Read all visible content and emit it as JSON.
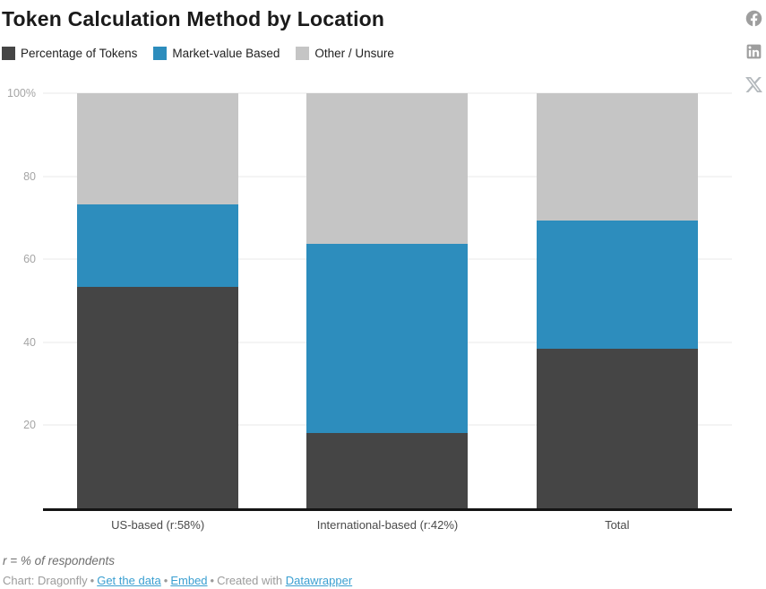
{
  "title": "Token Calculation Method by Location",
  "legend": [
    {
      "label": "Percentage of Tokens",
      "color": "#454545"
    },
    {
      "label": "Market-value Based",
      "color": "#2d8dbd"
    },
    {
      "label": "Other / Unsure",
      "color": "#c5c5c5"
    }
  ],
  "chart_data": {
    "type": "bar",
    "stacked": true,
    "unit": "%",
    "title": "Token Calculation Method by Location",
    "categories": [
      "US-based (r:58%)",
      "International-based (r:42%)",
      "Total"
    ],
    "series": [
      {
        "name": "Percentage of Tokens",
        "color": "#454545",
        "values": [
          53.3,
          18.2,
          38.5
        ]
      },
      {
        "name": "Market-value Based",
        "color": "#2d8dbd",
        "values": [
          20.0,
          45.5,
          30.8
        ]
      },
      {
        "name": "Other / Unsure",
        "color": "#c5c5c5",
        "values": [
          26.7,
          36.4,
          30.7
        ]
      }
    ],
    "xlabel": "",
    "ylabel": "",
    "ylim": [
      0,
      100
    ],
    "yticks": [
      20,
      40,
      60,
      80,
      100
    ],
    "ytick_labels": [
      "20",
      "40",
      "60",
      "80",
      "100%"
    ],
    "grid": true,
    "legend_position": "top"
  },
  "footer": {
    "note": "r = % of respondents",
    "attribution": {
      "credit": "Chart: Dragonfly",
      "separator": "•",
      "get_data_label": "Get the data",
      "embed_label": "Embed",
      "created_with": "Created with",
      "datawrapper_label": "Datawrapper",
      "link_color": "#3a9fd1"
    }
  },
  "share": {
    "icons": [
      "facebook-share-icon",
      "linkedin-share-icon",
      "x-share-icon"
    ]
  }
}
